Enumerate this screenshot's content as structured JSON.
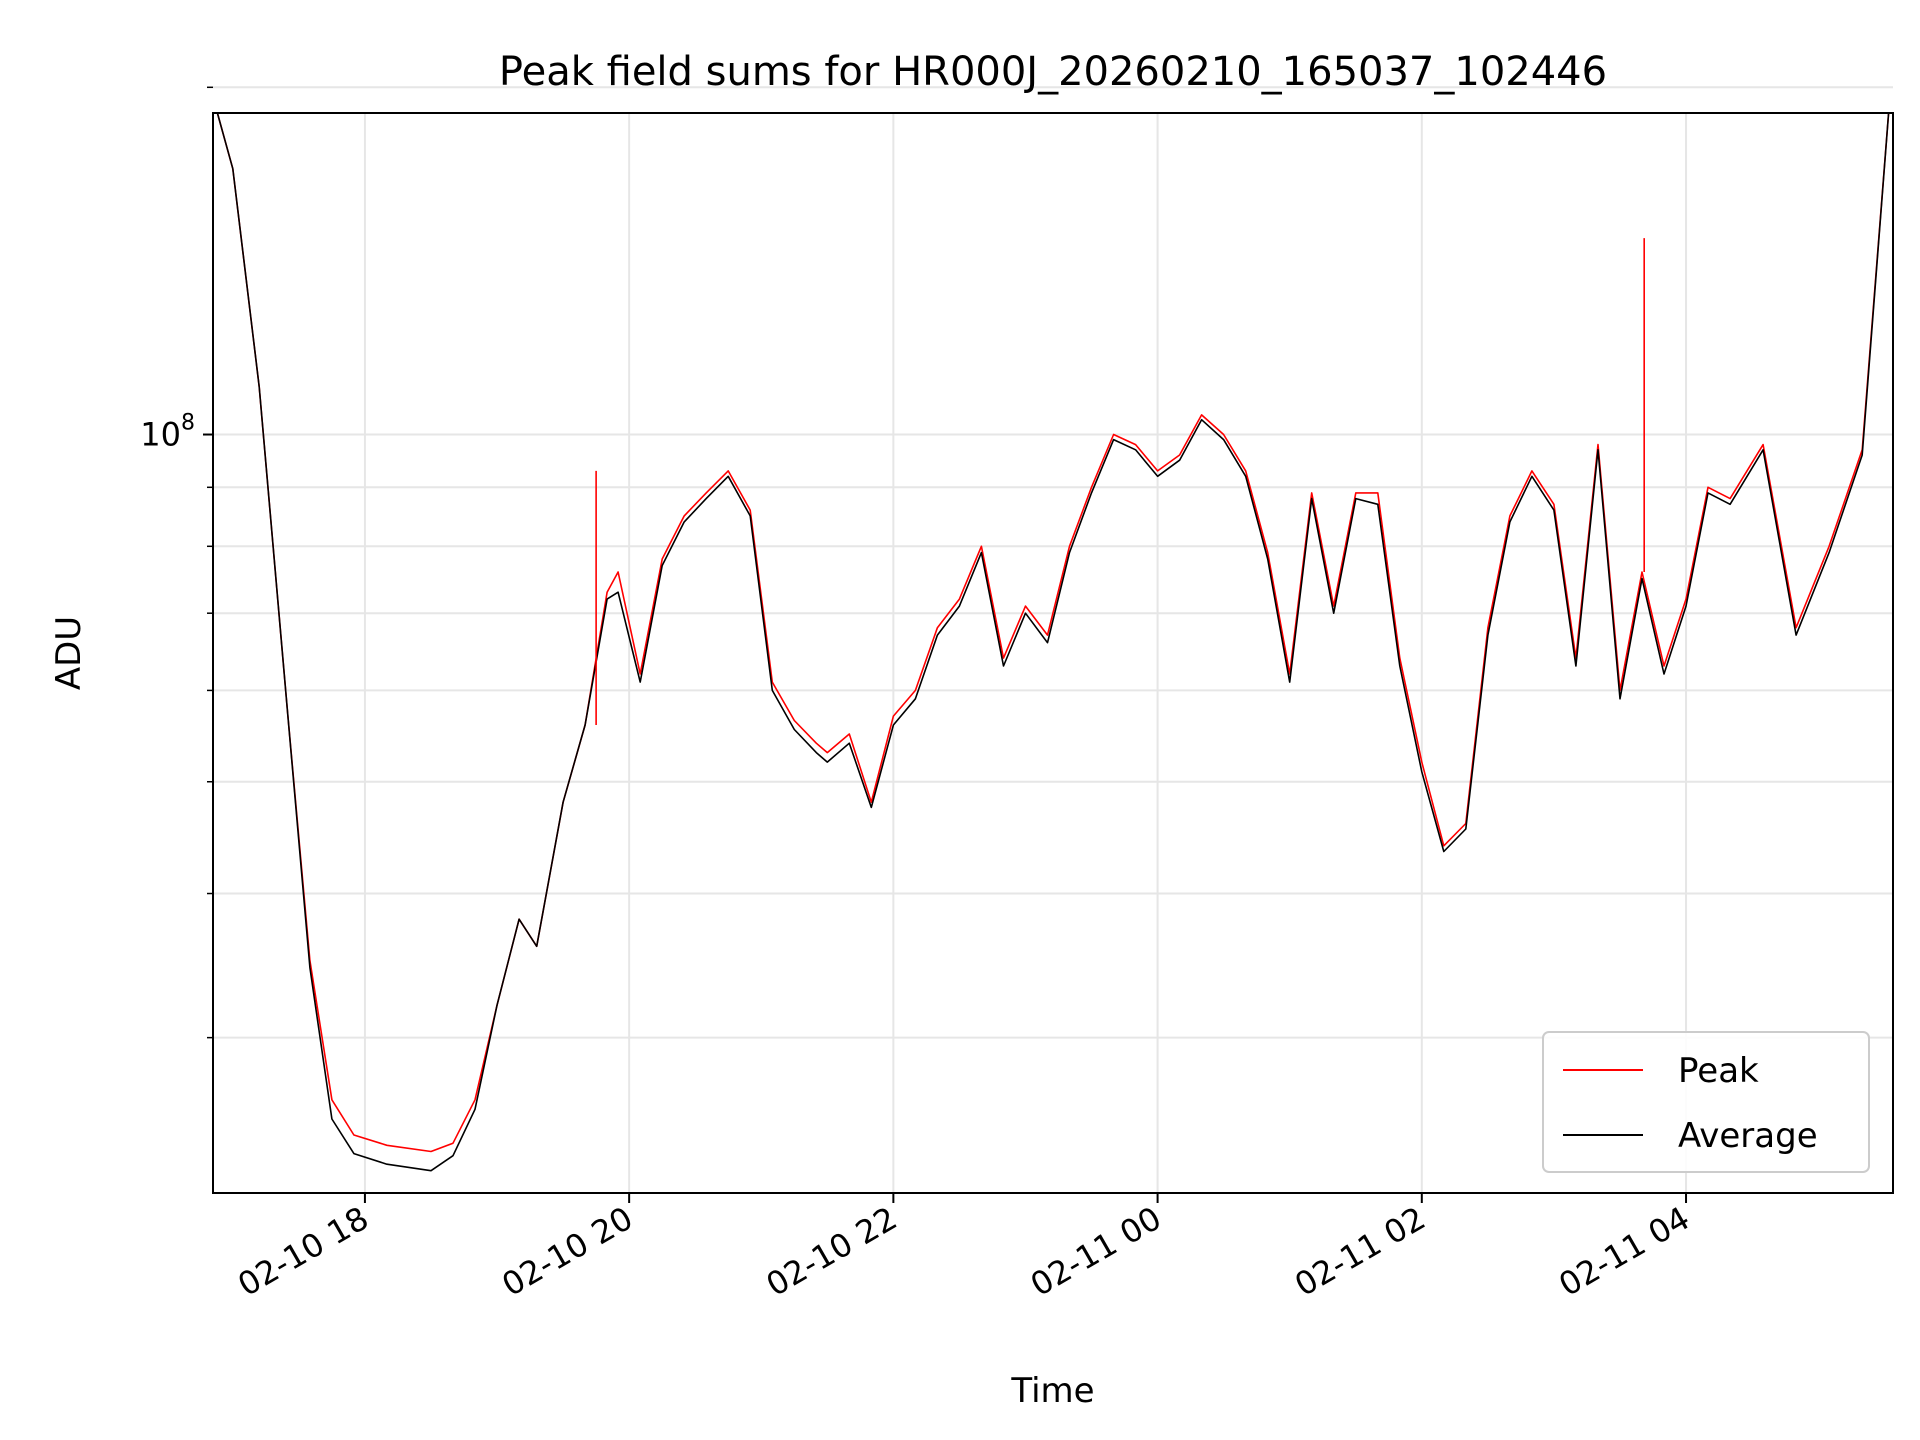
{
  "chart_data": {
    "type": "line",
    "title": "Peak field sums for HR000J_20260210_165037_102446",
    "xlabel": "Time",
    "ylabel": "ADU",
    "y_scale": "log",
    "ylim": [
      22000000,
      190000000
    ],
    "xlim": [
      "2026-02-10 16:51",
      "2026-02-11 05:34"
    ],
    "x_ticks": [
      "02-10 18",
      "02-10 20",
      "02-10 22",
      "02-11 00",
      "02-11 02",
      "02-11 04"
    ],
    "y_tick_major": {
      "value": 100000000,
      "label": "10",
      "exponent": "8"
    },
    "y_tick_minor": [
      30000000,
      40000000,
      50000000,
      60000000,
      70000000,
      80000000,
      90000000,
      200000000
    ],
    "grid": true,
    "legend_position": "lower-right",
    "x": [
      "2026-02-10 16:53",
      "2026-02-10 17:00",
      "2026-02-10 17:12",
      "2026-02-10 17:25",
      "2026-02-10 17:35",
      "2026-02-10 17:45",
      "2026-02-10 17:55",
      "2026-02-10 18:10",
      "2026-02-10 18:30",
      "2026-02-10 18:40",
      "2026-02-10 18:50",
      "2026-02-10 19:00",
      "2026-02-10 19:10",
      "2026-02-10 19:18",
      "2026-02-10 19:30",
      "2026-02-10 19:40",
      "2026-02-10 19:50",
      "2026-02-10 19:55",
      "2026-02-10 20:05",
      "2026-02-10 20:15",
      "2026-02-10 20:25",
      "2026-02-10 20:35",
      "2026-02-10 20:45",
      "2026-02-10 20:55",
      "2026-02-10 21:05",
      "2026-02-10 21:15",
      "2026-02-10 21:25",
      "2026-02-10 21:30",
      "2026-02-10 21:40",
      "2026-02-10 21:50",
      "2026-02-10 22:00",
      "2026-02-10 22:10",
      "2026-02-10 22:20",
      "2026-02-10 22:30",
      "2026-02-10 22:40",
      "2026-02-10 22:50",
      "2026-02-10 23:00",
      "2026-02-10 23:10",
      "2026-02-10 23:20",
      "2026-02-10 23:30",
      "2026-02-10 23:40",
      "2026-02-10 23:50",
      "2026-02-11 00:00",
      "2026-02-11 00:10",
      "2026-02-11 00:20",
      "2026-02-11 00:30",
      "2026-02-11 00:40",
      "2026-02-11 00:50",
      "2026-02-11 01:00",
      "2026-02-11 01:10",
      "2026-02-11 01:20",
      "2026-02-11 01:30",
      "2026-02-11 01:40",
      "2026-02-11 01:50",
      "2026-02-11 02:00",
      "2026-02-11 02:10",
      "2026-02-11 02:20",
      "2026-02-11 02:30",
      "2026-02-11 02:40",
      "2026-02-11 02:50",
      "2026-02-11 03:00",
      "2026-02-11 03:10",
      "2026-02-11 03:20",
      "2026-02-11 03:30",
      "2026-02-11 03:40",
      "2026-02-11 03:50",
      "2026-02-11 04:00",
      "2026-02-11 04:10",
      "2026-02-11 04:20",
      "2026-02-11 04:35",
      "2026-02-11 04:50",
      "2026-02-11 05:05",
      "2026-02-11 05:20",
      "2026-02-11 05:32"
    ],
    "series": [
      {
        "name": "Peak",
        "color": "#ff0000",
        "values": [
          190000000,
          170000000,
          110000000,
          57000000,
          35000000,
          26500000,
          24700000,
          24200000,
          23900000,
          24300000,
          26500000,
          32000000,
          38000000,
          36000000,
          48000000,
          56000000,
          73000000,
          76000000,
          62000000,
          78000000,
          85000000,
          89000000,
          93000000,
          86000000,
          61000000,
          56500000,
          54000000,
          53000000,
          55000000,
          48000000,
          57000000,
          60000000,
          68000000,
          72000000,
          80000000,
          64000000,
          71000000,
          67000000,
          80000000,
          90000000,
          100000000,
          98000000,
          93000000,
          96000000,
          104000000,
          100000000,
          93000000,
          79000000,
          62000000,
          89000000,
          71000000,
          89000000,
          89000000,
          64000000,
          52000000,
          44000000,
          46000000,
          68000000,
          85000000,
          93000000,
          87000000,
          64000000,
          98000000,
          60000000,
          76000000,
          63000000,
          72000000,
          90000000,
          88000000,
          98000000,
          68000000,
          80000000,
          97000000,
          190000000
        ]
      },
      {
        "name": "Average",
        "color": "#000000",
        "values": [
          190000000,
          170000000,
          110000000,
          57000000,
          34500000,
          25500000,
          23800000,
          23300000,
          23000000,
          23700000,
          26000000,
          32000000,
          38000000,
          36000000,
          48000000,
          56000000,
          72000000,
          73000000,
          61000000,
          77000000,
          84000000,
          88000000,
          92000000,
          85000000,
          60000000,
          55500000,
          53000000,
          52000000,
          54000000,
          47500000,
          56000000,
          59000000,
          67000000,
          71000000,
          79000000,
          63000000,
          70000000,
          66000000,
          79000000,
          89000000,
          99000000,
          97000000,
          92000000,
          95000000,
          103000000,
          99000000,
          92000000,
          78000000,
          61000000,
          88000000,
          70000000,
          88000000,
          87000000,
          63000000,
          51000000,
          43500000,
          45500000,
          67000000,
          84000000,
          92000000,
          86000000,
          63000000,
          97000000,
          59000000,
          75000000,
          62000000,
          71000000,
          89000000,
          87000000,
          97000000,
          67000000,
          79000000,
          96000000,
          190000000
        ]
      }
    ],
    "spikes": [
      {
        "series": "Peak",
        "x": "2026-02-10 19:45",
        "value": 93000000
      },
      {
        "series": "Peak",
        "x": "2026-02-11 03:41",
        "value": 148000000
      }
    ]
  }
}
